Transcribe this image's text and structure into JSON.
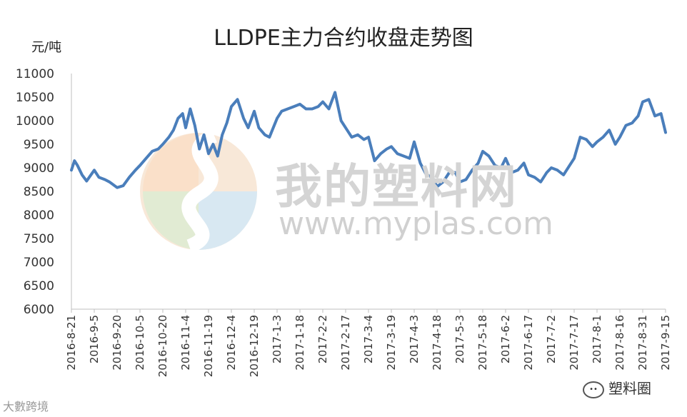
{
  "title": "LLDPE主力合约收盘走势图",
  "unit": "元/吨",
  "watermark": {
    "text": "我的塑料网",
    "url": "www.myplas.com"
  },
  "footer": {
    "left": "大數跨境",
    "right": "塑料圈",
    "right_icon": "wechat-icon"
  },
  "colors": {
    "line": "#4a7ebb",
    "axis": "#bfbfbf"
  },
  "chart_data": {
    "type": "line",
    "title": "LLDPE主力合约收盘走势图",
    "ylabel": "元/吨",
    "xlabel": "",
    "ylim": [
      6000,
      11000
    ],
    "yticks": [
      6000,
      6500,
      7000,
      7500,
      8000,
      8500,
      9000,
      9500,
      10000,
      10500,
      11000
    ],
    "xticks": [
      "2016-8-21",
      "2016-9-5",
      "2016-9-20",
      "2016-10-5",
      "2016-10-20",
      "2016-11-4",
      "2016-11-19",
      "2016-12-4",
      "2016-12-19",
      "2017-1-3",
      "2017-1-18",
      "2017-2-2",
      "2017-2-17",
      "2017-3-4",
      "2017-3-19",
      "2017-4-3",
      "2017-4-18",
      "2017-5-3",
      "2017-5-18",
      "2017-6-2",
      "2017-6-17",
      "2017-7-2",
      "2017-7-17",
      "2017-8-1",
      "2017-8-16",
      "2017-8-31",
      "2017-9-15"
    ],
    "grid": false,
    "legend": "none",
    "series": [
      {
        "x": [
          "2016-8-21",
          "2016-8-23",
          "2016-8-25",
          "2016-8-28",
          "2016-8-31",
          "2016-9-5",
          "2016-9-8",
          "2016-9-12",
          "2016-9-15",
          "2016-9-20",
          "2016-9-24",
          "2016-9-28",
          "2016-10-2",
          "2016-10-5",
          "2016-10-9",
          "2016-10-13",
          "2016-10-17",
          "2016-10-20",
          "2016-10-24",
          "2016-10-27",
          "2016-10-30",
          "2016-11-2",
          "2016-11-4",
          "2016-11-7",
          "2016-11-10",
          "2016-11-13",
          "2016-11-16",
          "2016-11-19",
          "2016-11-22",
          "2016-11-25",
          "2016-11-28",
          "2016-12-1",
          "2016-12-4",
          "2016-12-8",
          "2016-12-12",
          "2016-12-15",
          "2016-12-19",
          "2016-12-22",
          "2016-12-26",
          "2016-12-29",
          "2017-1-3",
          "2017-1-6",
          "2017-1-10",
          "2017-1-14",
          "2017-1-18",
          "2017-1-22",
          "2017-1-26",
          "2017-1-30",
          "2017-2-2",
          "2017-2-6",
          "2017-2-10",
          "2017-2-14",
          "2017-2-17",
          "2017-2-21",
          "2017-2-25",
          "2017-3-1",
          "2017-3-4",
          "2017-3-8",
          "2017-3-12",
          "2017-3-16",
          "2017-3-19",
          "2017-3-23",
          "2017-3-27",
          "2017-3-31",
          "2017-4-3",
          "2017-4-7",
          "2017-4-11",
          "2017-4-15",
          "2017-4-18",
          "2017-4-22",
          "2017-4-26",
          "2017-4-30",
          "2017-5-3",
          "2017-5-7",
          "2017-5-11",
          "2017-5-15",
          "2017-5-18",
          "2017-5-22",
          "2017-5-26",
          "2017-5-30",
          "2017-6-2",
          "2017-6-6",
          "2017-6-10",
          "2017-6-14",
          "2017-6-17",
          "2017-6-21",
          "2017-6-25",
          "2017-6-29",
          "2017-7-2",
          "2017-7-6",
          "2017-7-10",
          "2017-7-14",
          "2017-7-17",
          "2017-7-21",
          "2017-7-25",
          "2017-7-29",
          "2017-8-1",
          "2017-8-5",
          "2017-8-9",
          "2017-8-13",
          "2017-8-16",
          "2017-8-20",
          "2017-8-24",
          "2017-8-28",
          "2017-8-31",
          "2017-9-4",
          "2017-9-8",
          "2017-9-12",
          "2017-9-15"
        ],
        "values": [
          8950,
          9150,
          9050,
          8850,
          8720,
          8950,
          8800,
          8750,
          8700,
          8580,
          8620,
          8800,
          8950,
          9050,
          9200,
          9350,
          9400,
          9500,
          9650,
          9800,
          10050,
          10150,
          9850,
          10250,
          9900,
          9400,
          9700,
          9300,
          9500,
          9250,
          9700,
          9950,
          10300,
          10450,
          10050,
          9850,
          10200,
          9850,
          9700,
          9650,
          10050,
          10200,
          10250,
          10300,
          10350,
          10250,
          10250,
          10300,
          10400,
          10250,
          10600,
          10000,
          9850,
          9650,
          9700,
          9600,
          9650,
          9150,
          9300,
          9400,
          9450,
          9300,
          9250,
          9200,
          9550,
          9100,
          8850,
          8800,
          8600,
          8700,
          8900,
          8900,
          8700,
          8750,
          8950,
          9100,
          9350,
          9250,
          9050,
          9000,
          9200,
          8900,
          8950,
          9100,
          8850,
          8800,
          8700,
          8900,
          9000,
          8950,
          8850,
          9050,
          9200,
          9650,
          9600,
          9450,
          9550,
          9650,
          9800,
          9500,
          9650,
          9900,
          9950,
          10100,
          10400,
          10450,
          10100,
          10150,
          9750
        ]
      }
    ]
  }
}
